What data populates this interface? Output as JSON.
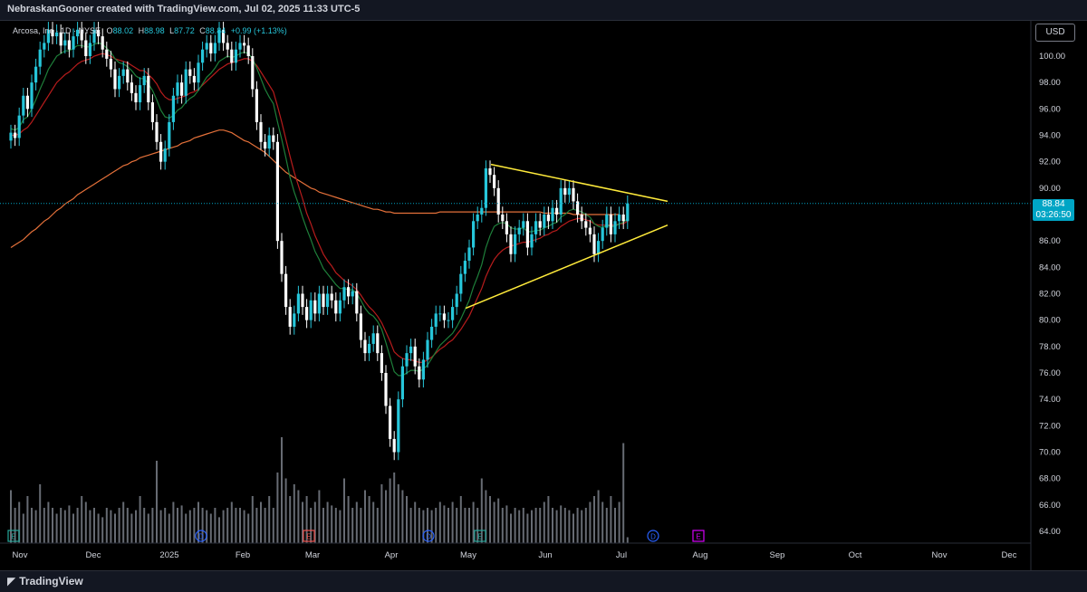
{
  "header": {
    "caption": "NebraskanGooner created with TradingView.com, Jul 02, 2025 11:33 UTC-5"
  },
  "legend": {
    "symbol": "Arcosa, Inc · 1D · NYSE",
    "open_label": "O",
    "open": "88.02",
    "high_label": "H",
    "high": "88.98",
    "low_label": "L",
    "low": "87.72",
    "close_label": "C",
    "close": "88.84",
    "change": "+0.99 (+1.13%)"
  },
  "currency": "USD",
  "last_price": {
    "value": "88.84",
    "countdown": "03:26:50"
  },
  "footer": {
    "brand": "TradingView"
  },
  "colors": {
    "background": "#000000",
    "candle": "#26c6da",
    "candle_down": "#ffffff",
    "ema_fast": "#1e7f3a",
    "ema_mid": "#b71c1c",
    "ema_slow": "#e5713a",
    "trendline": "#ffeb3b",
    "volume": "#8a8f99",
    "price_tag": "#00a5c5"
  },
  "icons": [
    "earnings-icon",
    "dividend-icon"
  ],
  "chart_data": {
    "type": "candlestick",
    "title": "",
    "xlabel": "",
    "ylabel": "",
    "y_ticks": [
      "100.00",
      "98.00",
      "96.00",
      "94.00",
      "92.00",
      "90.00",
      "88.00",
      "86.00",
      "84.00",
      "82.00",
      "80.00",
      "78.00",
      "76.00",
      "74.00",
      "72.00",
      "70.00",
      "68.00",
      "66.00",
      "64.00"
    ],
    "ylim": [
      63,
      102.5
    ],
    "x_ticks": [
      "Nov",
      "Dec",
      "2025",
      "Feb",
      "Mar",
      "Apr",
      "May",
      "Jun",
      "Jul",
      "Aug",
      "Sep",
      "Oct",
      "Nov",
      "Dec"
    ],
    "close_series": [
      94.2,
      93.8,
      95.5,
      97,
      96,
      98,
      99.2,
      100.5,
      101,
      102,
      101.5,
      101.8,
      100.8,
      101.2,
      100.5,
      101.5,
      102,
      101.2,
      100,
      101,
      102,
      101.5,
      100.5,
      99.8,
      99,
      97.5,
      98.5,
      99,
      98,
      97.2,
      96.5,
      97.8,
      98.5,
      96.5,
      95,
      93.5,
      92,
      93,
      95,
      97,
      98,
      97,
      99,
      98.5,
      98,
      99.5,
      100.5,
      101,
      100.2,
      101,
      102,
      101,
      100.5,
      99.5,
      100.5,
      101,
      100.8,
      100,
      97.5,
      95,
      93.5,
      93,
      94,
      93.5,
      86,
      83.5,
      81,
      79.5,
      80.5,
      82,
      81,
      80,
      81.5,
      80.5,
      82,
      81,
      82,
      81.5,
      80.5,
      81.5,
      82.5,
      81.8,
      82.2,
      80.5,
      78.5,
      77.5,
      78.2,
      79,
      77.5,
      76,
      73.5,
      71,
      70,
      74,
      76.5,
      77.5,
      78,
      76.5,
      75.5,
      77,
      78.5,
      79.5,
      80.5,
      80.5,
      80,
      80,
      81,
      82,
      83.5,
      84.5,
      85.5,
      87.5,
      88,
      88.5,
      91.5,
      91,
      90,
      88,
      87.5,
      86.5,
      85,
      86.5,
      87,
      87.5,
      85.5,
      86.5,
      87.5,
      87,
      88,
      87.5,
      88.5,
      88,
      90,
      89.5,
      90,
      89,
      88,
      87.5,
      87,
      86.5,
      85,
      86,
      87,
      88,
      86.5,
      87.5,
      88,
      87.5,
      88.84
    ],
    "ema_fast_series": [
      94.5,
      94.4,
      94.6,
      95.2,
      95.4,
      96,
      96.7,
      97.5,
      98.2,
      99,
      99.5,
      100,
      100.2,
      100.4,
      100.4,
      100.6,
      100.8,
      100.8,
      100.7,
      100.7,
      100.9,
      101,
      100.9,
      100.6,
      100.3,
      99.8,
      99.5,
      99.4,
      99.2,
      98.9,
      98.5,
      98.3,
      98.3,
      97.9,
      97.4,
      96.7,
      95.9,
      95.4,
      95.3,
      95.5,
      95.9,
      96.1,
      96.5,
      96.8,
      97,
      97.4,
      97.9,
      98.4,
      98.7,
      99.1,
      99.6,
      99.8,
      100,
      99.9,
      100,
      100.2,
      100.3,
      100.2,
      99.8,
      99.1,
      98.3,
      97.5,
      96.9,
      96.4,
      95,
      93.7,
      92.3,
      90.8,
      89.7,
      88.8,
      87.8,
      86.9,
      86.1,
      85.2,
      84.6,
      83.9,
      83.5,
      83.1,
      82.7,
      82.4,
      82.4,
      82.3,
      82.3,
      82,
      81.5,
      80.9,
      80.5,
      80.3,
      79.9,
      79.3,
      78.3,
      77.2,
      76.1,
      75.8,
      75.8,
      76,
      76.2,
      76.2,
      76.1,
      76.3,
      76.6,
      77.1,
      77.6,
      78.1,
      78.4,
      78.7,
      79,
      79.5,
      80.1,
      80.8,
      81.5,
      82.5,
      83.3,
      84.2,
      85.5,
      86.4,
      87.1,
      87.3,
      87.4,
      87.3,
      87,
      86.9,
      86.9,
      87,
      86.7,
      86.7,
      86.8,
      86.8,
      87,
      87.1,
      87.3,
      87.4,
      87.8,
      88,
      88.3,
      88.4,
      88.3,
      88.2,
      88,
      87.8,
      87.3,
      87.1,
      87,
      87.2,
      87.1,
      87.1,
      87.3,
      87.4,
      87.7
    ],
    "ema_mid_series": [
      94,
      94,
      94.1,
      94.4,
      94.6,
      95,
      95.5,
      96,
      96.5,
      97,
      97.5,
      98,
      98.3,
      98.6,
      98.8,
      99.1,
      99.4,
      99.6,
      99.7,
      99.8,
      100,
      100.1,
      100.2,
      100.1,
      100,
      99.8,
      99.7,
      99.6,
      99.5,
      99.3,
      99.1,
      98.9,
      98.9,
      98.6,
      98.3,
      97.9,
      97.3,
      96.9,
      96.7,
      96.7,
      96.8,
      96.9,
      97,
      97.2,
      97.3,
      97.5,
      97.8,
      98.1,
      98.4,
      98.7,
      99,
      99.2,
      99.4,
      99.5,
      99.6,
      99.7,
      99.8,
      99.8,
      99.6,
      99.3,
      98.8,
      98.3,
      97.8,
      97.3,
      96.2,
      95,
      93.7,
      92.4,
      91.2,
      90.2,
      89.2,
      88.1,
      87.3,
      86.4,
      85.7,
      85,
      84.5,
      84.1,
      83.6,
      83.3,
      83,
      82.8,
      82.6,
      82.3,
      81.9,
      81.4,
      81,
      80.7,
      80.3,
      79.8,
      79.1,
      78.4,
      77.6,
      77.3,
      77.1,
      77,
      77,
      76.9,
      76.8,
      76.8,
      77,
      77.2,
      77.5,
      77.8,
      78,
      78.3,
      78.5,
      78.9,
      79.3,
      79.8,
      80.3,
      81,
      81.7,
      82.4,
      83.3,
      84,
      84.6,
      85,
      85.3,
      85.5,
      85.6,
      85.7,
      85.8,
      85.9,
      85.9,
      86,
      86.1,
      86.2,
      86.4,
      86.5,
      86.7,
      86.8,
      87.1,
      87.3,
      87.5,
      87.6,
      87.7,
      87.7,
      87.6,
      87.5,
      87.3,
      87.2,
      87.2,
      87.2,
      87.2,
      87.2,
      87.3,
      87.3,
      87.5
    ],
    "ema_slow_series": [
      85.5,
      85.7,
      85.9,
      86.1,
      86.4,
      86.7,
      86.9,
      87.2,
      87.5,
      87.7,
      88,
      88.3,
      88.5,
      88.8,
      89,
      89.2,
      89.5,
      89.7,
      89.9,
      90.1,
      90.3,
      90.5,
      90.7,
      90.9,
      91.1,
      91.3,
      91.5,
      91.7,
      91.8,
      92,
      92.1,
      92.3,
      92.4,
      92.5,
      92.6,
      92.7,
      92.8,
      92.9,
      93,
      93.1,
      93.2,
      93.4,
      93.5,
      93.6,
      93.8,
      93.9,
      94,
      94.1,
      94.2,
      94.3,
      94.4,
      94.4,
      94.3,
      94.2,
      94,
      93.8,
      93.6,
      93.5,
      93.3,
      93.1,
      92.9,
      92.7,
      92.4,
      92.1,
      91.8,
      91.5,
      91.2,
      91,
      90.8,
      90.6,
      90.4,
      90.2,
      90,
      89.9,
      89.7,
      89.6,
      89.5,
      89.4,
      89.3,
      89.2,
      89.1,
      89,
      88.9,
      88.8,
      88.7,
      88.6,
      88.5,
      88.4,
      88.4,
      88.3,
      88.2,
      88.2,
      88.1,
      88.1,
      88.1,
      88.1,
      88.1,
      88.1,
      88.1,
      88.1,
      88.1,
      88.1,
      88.1,
      88.2,
      88.2,
      88.2,
      88.2,
      88.2,
      88.2,
      88.2,
      88.2,
      88.2,
      88.2,
      88.2,
      88.2,
      88.2,
      88.2,
      88.2,
      88.2,
      88.2,
      88.2,
      88.2,
      88.2,
      88.2,
      88.2,
      88.2,
      88.2,
      88.2,
      88.1,
      88.1,
      88.1,
      88.1,
      88.1,
      88.1,
      88.1,
      88,
      88,
      88,
      88,
      88,
      88,
      88,
      88,
      88,
      88,
      88,
      88
    ],
    "volume_series": [
      0.45,
      0.3,
      0.35,
      0.25,
      0.4,
      0.3,
      0.28,
      0.5,
      0.3,
      0.35,
      0.3,
      0.25,
      0.3,
      0.28,
      0.32,
      0.25,
      0.3,
      0.4,
      0.35,
      0.28,
      0.3,
      0.25,
      0.22,
      0.3,
      0.28,
      0.25,
      0.3,
      0.35,
      0.3,
      0.25,
      0.28,
      0.4,
      0.3,
      0.25,
      0.3,
      0.7,
      0.28,
      0.3,
      0.25,
      0.35,
      0.3,
      0.32,
      0.25,
      0.28,
      0.3,
      0.35,
      0.3,
      0.28,
      0.25,
      0.3,
      0.22,
      0.28,
      0.3,
      0.35,
      0.3,
      0.3,
      0.28,
      0.25,
      0.4,
      0.3,
      0.35,
      0.3,
      0.4,
      0.3,
      0.6,
      0.9,
      0.55,
      0.4,
      0.5,
      0.45,
      0.35,
      0.4,
      0.3,
      0.35,
      0.45,
      0.3,
      0.35,
      0.32,
      0.3,
      0.28,
      0.55,
      0.4,
      0.3,
      0.35,
      0.3,
      0.45,
      0.4,
      0.35,
      0.3,
      0.5,
      0.45,
      0.55,
      0.6,
      0.5,
      0.45,
      0.4,
      0.3,
      0.35,
      0.3,
      0.28,
      0.3,
      0.28,
      0.3,
      0.35,
      0.32,
      0.3,
      0.35,
      0.3,
      0.4,
      0.3,
      0.3,
      0.35,
      0.3,
      0.55,
      0.45,
      0.4,
      0.35,
      0.38,
      0.3,
      0.32,
      0.25,
      0.3,
      0.28,
      0.3,
      0.25,
      0.28,
      0.3,
      0.3,
      0.35,
      0.4,
      0.3,
      0.28,
      0.32,
      0.3,
      0.28,
      0.25,
      0.3,
      0.28,
      0.3,
      0.35,
      0.4,
      0.45,
      0.35,
      0.3,
      0.4,
      0.3,
      0.35,
      0.85,
      0.05
    ]
  }
}
